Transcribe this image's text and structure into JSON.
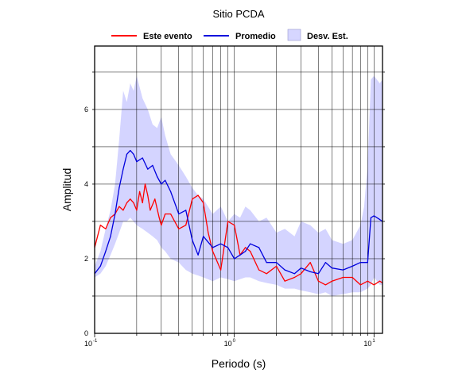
{
  "chart_data": {
    "type": "line",
    "title": "Sitio PCDA",
    "xlabel": "Periodo (s)",
    "ylabel": "Amplitud",
    "xscale": "log",
    "xlim": [
      0.1,
      11.5
    ],
    "ylim": [
      0,
      7.7
    ],
    "grid": true,
    "legend_position": "top",
    "x_ticks": [
      {
        "base": "10",
        "exp": "-1",
        "value": 0.1
      },
      {
        "base": "10",
        "exp": "0",
        "value": 1
      },
      {
        "base": "10",
        "exp": "1",
        "value": 10
      }
    ],
    "y_ticks": [
      {
        "label": "0",
        "value": 0
      },
      {
        "label": "2",
        "value": 2
      },
      {
        "label": "4",
        "value": 4
      },
      {
        "label": "6",
        "value": 6
      }
    ],
    "legend": [
      {
        "label": "Este evento",
        "kind": "line",
        "color": "#ff0000"
      },
      {
        "label": "Promedio",
        "kind": "line",
        "color": "#0000dd"
      },
      {
        "label": "Desv. Est.",
        "kind": "band",
        "color": "#ccccff"
      }
    ],
    "series": [
      {
        "name": "Este evento",
        "color": "#ff0000",
        "x": [
          0.1,
          0.11,
          0.12,
          0.13,
          0.14,
          0.15,
          0.16,
          0.17,
          0.18,
          0.19,
          0.2,
          0.21,
          0.22,
          0.23,
          0.24,
          0.25,
          0.27,
          0.29,
          0.3,
          0.32,
          0.35,
          0.4,
          0.45,
          0.5,
          0.55,
          0.6,
          0.65,
          0.7,
          0.8,
          0.9,
          1.0,
          1.1,
          1.2,
          1.3,
          1.5,
          1.7,
          2.0,
          2.3,
          2.7,
          3.0,
          3.5,
          4.0,
          4.5,
          5.0,
          6.0,
          7.0,
          8.0,
          9.0,
          10.0,
          11.0,
          11.5
        ],
        "y": [
          2.3,
          2.9,
          2.8,
          3.1,
          3.2,
          3.4,
          3.3,
          3.5,
          3.6,
          3.5,
          3.3,
          3.8,
          3.5,
          4.0,
          3.7,
          3.3,
          3.6,
          3.1,
          2.9,
          3.2,
          3.2,
          2.8,
          2.9,
          3.6,
          3.7,
          3.5,
          2.7,
          2.2,
          1.7,
          3.0,
          2.9,
          2.1,
          2.3,
          2.2,
          1.7,
          1.6,
          1.8,
          1.4,
          1.5,
          1.6,
          1.9,
          1.4,
          1.3,
          1.4,
          1.5,
          1.5,
          1.3,
          1.4,
          1.3,
          1.4,
          1.35
        ]
      },
      {
        "name": "Promedio",
        "color": "#0000dd",
        "x": [
          0.1,
          0.11,
          0.12,
          0.13,
          0.14,
          0.15,
          0.16,
          0.17,
          0.18,
          0.19,
          0.2,
          0.22,
          0.24,
          0.26,
          0.28,
          0.3,
          0.32,
          0.35,
          0.4,
          0.45,
          0.5,
          0.55,
          0.6,
          0.7,
          0.8,
          0.9,
          1.0,
          1.1,
          1.2,
          1.3,
          1.5,
          1.7,
          2.0,
          2.3,
          2.7,
          3.0,
          3.5,
          4.0,
          4.5,
          5.0,
          6.0,
          7.0,
          8.0,
          9.0,
          9.5,
          10.0,
          11.0,
          11.5
        ],
        "y": [
          1.6,
          1.8,
          2.2,
          2.6,
          3.2,
          3.9,
          4.4,
          4.8,
          4.9,
          4.8,
          4.6,
          4.7,
          4.4,
          4.5,
          4.2,
          4.0,
          4.1,
          3.8,
          3.2,
          3.3,
          2.5,
          2.1,
          2.6,
          2.3,
          2.4,
          2.3,
          2.0,
          2.1,
          2.2,
          2.4,
          2.3,
          1.9,
          1.9,
          1.7,
          1.6,
          1.75,
          1.65,
          1.6,
          1.9,
          1.75,
          1.7,
          1.8,
          1.9,
          1.9,
          3.1,
          3.15,
          3.05,
          3.0
        ]
      }
    ],
    "band": {
      "name": "Desv. Est.",
      "color": "#ccccff",
      "x": [
        0.1,
        0.11,
        0.12,
        0.13,
        0.14,
        0.15,
        0.16,
        0.17,
        0.18,
        0.19,
        0.2,
        0.22,
        0.24,
        0.26,
        0.28,
        0.3,
        0.32,
        0.35,
        0.4,
        0.45,
        0.5,
        0.55,
        0.6,
        0.7,
        0.8,
        0.9,
        1.0,
        1.1,
        1.2,
        1.3,
        1.5,
        1.7,
        2.0,
        2.3,
        2.7,
        3.0,
        3.5,
        4.0,
        4.5,
        5.0,
        6.0,
        7.0,
        8.0,
        8.5,
        9.0,
        9.5,
        10.0,
        11.0,
        11.5
      ],
      "upper": [
        1.8,
        2.2,
        2.8,
        3.3,
        4.0,
        5.2,
        6.5,
        6.2,
        6.7,
        6.5,
        6.9,
        6.3,
        6.0,
        5.6,
        5.5,
        5.8,
        5.3,
        4.8,
        4.5,
        4.2,
        3.9,
        3.7,
        3.6,
        3.2,
        3.4,
        3.0,
        3.2,
        3.1,
        3.4,
        3.3,
        3.0,
        3.1,
        2.7,
        2.8,
        2.6,
        3.0,
        2.9,
        2.7,
        2.8,
        2.5,
        2.4,
        2.5,
        2.9,
        3.4,
        4.5,
        6.8,
        6.9,
        6.7,
        6.8
      ],
      "lower": [
        1.5,
        1.6,
        1.8,
        2.1,
        2.4,
        2.7,
        3.0,
        3.0,
        3.1,
        3.0,
        2.9,
        2.8,
        2.7,
        2.6,
        2.5,
        2.3,
        2.2,
        2.0,
        1.9,
        1.7,
        1.6,
        1.55,
        1.5,
        1.4,
        1.5,
        1.45,
        1.4,
        1.45,
        1.5,
        1.5,
        1.4,
        1.35,
        1.3,
        1.2,
        1.2,
        1.15,
        1.1,
        1.05,
        1.1,
        1.0,
        1.05,
        1.1,
        1.1,
        1.15,
        1.2,
        1.3,
        1.5,
        1.3,
        1.3
      ]
    }
  }
}
